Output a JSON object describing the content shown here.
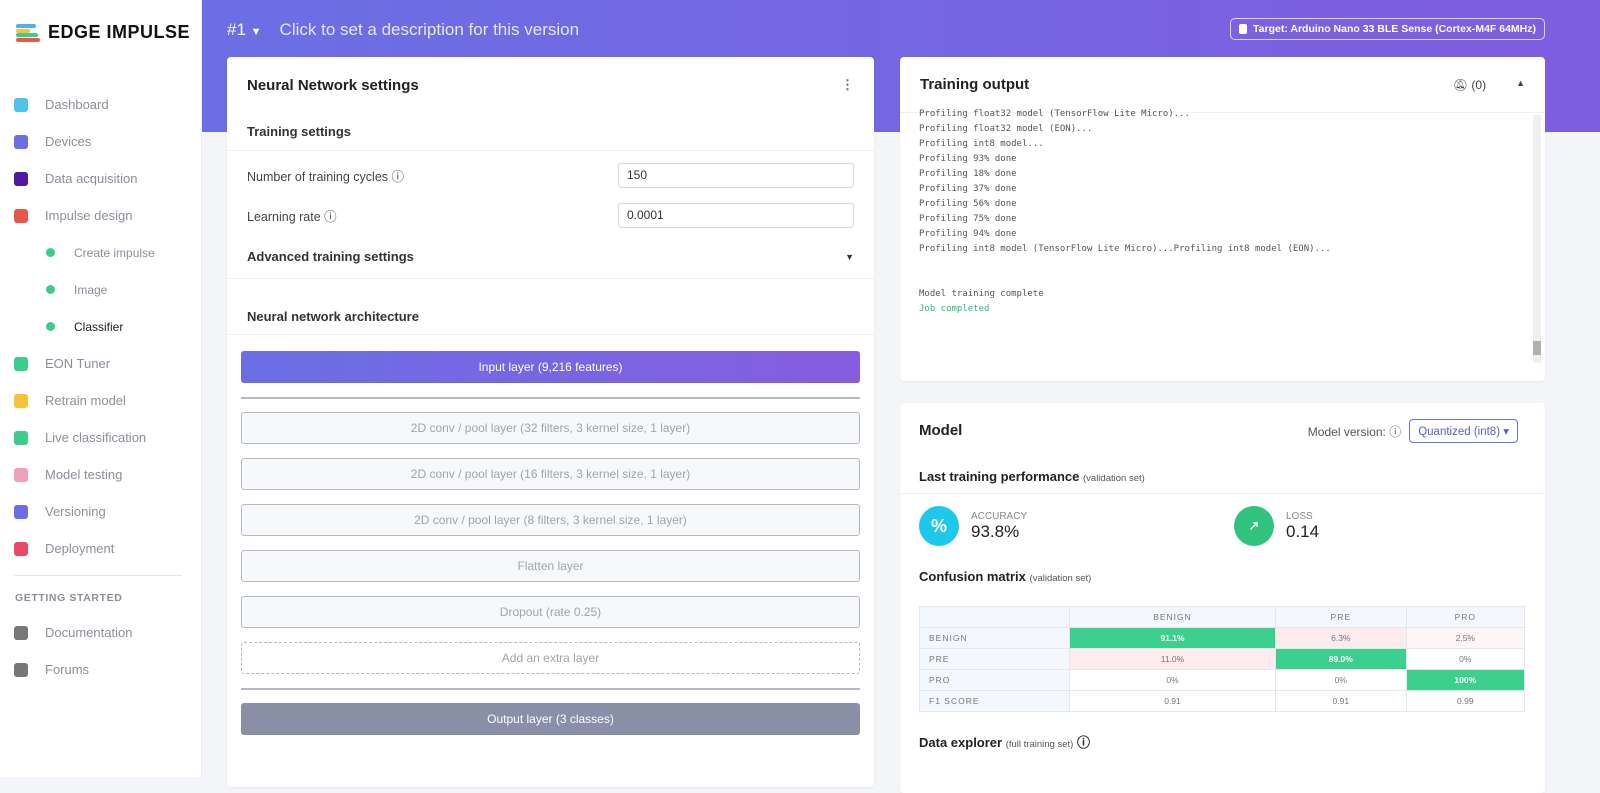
{
  "brand": {
    "name": "EDGE IMPULSE",
    "colors": [
      "#4fb1e8",
      "#f7c23a",
      "#3ccc8b",
      "#e8584a"
    ]
  },
  "nav": {
    "items": [
      {
        "label": "Dashboard",
        "icon": "monitor-icon",
        "color": "#4fc3e8"
      },
      {
        "label": "Devices",
        "icon": "chip-icon",
        "color": "#6b6fe3"
      },
      {
        "label": "Data acquisition",
        "icon": "database-icon",
        "color": "#4b1a9e"
      },
      {
        "label": "Impulse design",
        "icon": "pulse-icon",
        "color": "#e8584a"
      }
    ],
    "sub": [
      {
        "label": "Create impulse"
      },
      {
        "label": "Image"
      },
      {
        "label": "Classifier"
      }
    ],
    "items2": [
      {
        "label": "EON Tuner",
        "icon": "compass-icon",
        "color": "#3ccc8b"
      },
      {
        "label": "Retrain model",
        "icon": "shuffle-icon",
        "color": "#f7c23a"
      },
      {
        "label": "Live classification",
        "icon": "live-icon",
        "color": "#3ccc8b"
      },
      {
        "label": "Model testing",
        "icon": "clipboard-icon",
        "color": "#f0a0b8"
      },
      {
        "label": "Versioning",
        "icon": "branch-icon",
        "color": "#6b6fe3"
      },
      {
        "label": "Deployment",
        "icon": "box-icon",
        "color": "#e84a6a"
      }
    ],
    "section": "GETTING STARTED",
    "items3": [
      {
        "label": "Documentation",
        "icon": "docs-icon",
        "color": "#777"
      },
      {
        "label": "Forums",
        "icon": "chat-icon",
        "color": "#777"
      }
    ]
  },
  "header": {
    "version": "#1",
    "description": "Click to set a description for this version",
    "target": "Target: Arduino Nano 33 BLE Sense (Cortex-M4F 64MHz)"
  },
  "nn": {
    "title": "Neural Network settings",
    "training_settings": "Training settings",
    "cycles_label": "Number of training cycles",
    "cycles": "150",
    "lr_label": "Learning rate",
    "lr": "0.0001",
    "advanced": "Advanced training settings",
    "arch": "Neural network architecture",
    "input": "Input layer (9,216 features)",
    "layers": [
      "2D conv / pool layer (32 filters, 3 kernel size, 1 layer)",
      "2D conv / pool layer (16 filters, 3 kernel size, 1 layer)",
      "2D conv / pool layer (8 filters, 3 kernel size, 1 layer)",
      "Flatten layer",
      "Dropout (rate 0.25)"
    ],
    "add": "Add an extra layer",
    "output": "Output layer (3 classes)"
  },
  "output": {
    "title": "Training output",
    "notif": "(0)",
    "log": "Profiling float32 model (TensorFlow Lite Micro)...\nProfiling float32 model (EON)...\nProfiling int8 model...\nProfiling 93% done\nProfiling 18% done\nProfiling 37% done\nProfiling 56% done\nProfiling 75% done\nProfiling 94% done\nProfiling int8 model (TensorFlow Lite Micro)...Profiling int8 model (EON)...\n\n\nModel training complete",
    "done": "Job completed"
  },
  "model": {
    "title": "Model",
    "version_label": "Model version:",
    "version": "Quantized (int8)",
    "perf": "Last training performance",
    "perf_note": "(validation set)",
    "acc_label": "ACCURACY",
    "acc": "93.8%",
    "loss_label": "LOSS",
    "loss": "0.14",
    "cm": "Confusion matrix",
    "cm_note": "(validation set)",
    "cols": [
      "BENIGN",
      "PRE",
      "PRO"
    ],
    "rows": [
      {
        "label": "BENIGN",
        "cells": [
          "91.1%",
          "6.3%",
          "2.5%"
        ]
      },
      {
        "label": "PRE",
        "cells": [
          "11.0%",
          "89.0%",
          "0%"
        ]
      },
      {
        "label": "PRO",
        "cells": [
          "0%",
          "0%",
          "100%"
        ]
      },
      {
        "label": "F1 SCORE",
        "cells": [
          "0.91",
          "0.91",
          "0.99"
        ]
      }
    ],
    "explorer": "Data explorer",
    "explorer_note": "(full training set)"
  }
}
